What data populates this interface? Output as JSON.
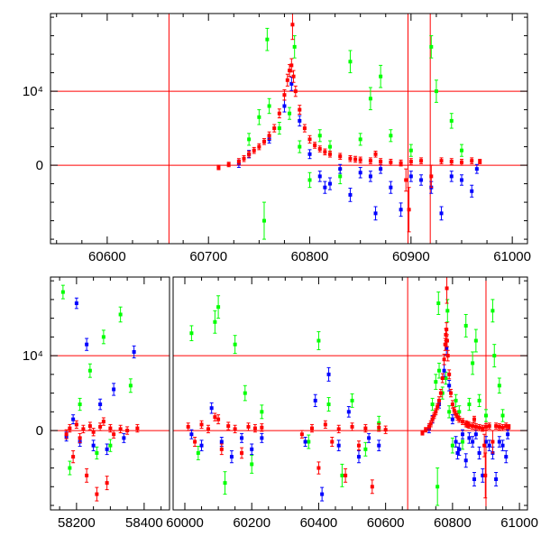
{
  "chart_data": {
    "type": "scatter",
    "title": "",
    "xlabel": "",
    "ylabel": "",
    "colors": {
      "red": "#ff0000",
      "blue": "#0000ff",
      "green": "#00ff00",
      "ref": "#ff0000"
    },
    "panels": [
      {
        "name": "top-panel",
        "segments": [
          {
            "xlim": [
              60544,
              61015
            ],
            "xticks": [
              60600,
              60700,
              60800,
              60900,
              61000
            ],
            "xtick_labels": [
              "60600",
              "60700",
              "60800",
              "60900",
              "61000"
            ]
          }
        ],
        "ylim": [
          -10600,
          20500
        ],
        "yticks": [
          0,
          10000
        ],
        "ytick_labels": [
          "0",
          "10⁴"
        ],
        "hlines": [
          0,
          10000
        ],
        "vlines": [
          60661,
          60897,
          60919
        ],
        "series_sets": [
          "event"
        ]
      },
      {
        "name": "bottom-panel",
        "segments": [
          {
            "xlim": [
              58123,
              58475
            ],
            "xticks": [
              58200,
              58400
            ],
            "xtick_labels": [
              "58200",
              "58400"
            ]
          },
          {
            "xlim": [
              59965,
              61024
            ],
            "xticks": [
              60000,
              60200,
              60400,
              60600,
              60800,
              61000
            ],
            "xtick_labels": [
              "60000",
              "60200",
              "60400",
              "60600",
              "60800",
              "61000"
            ]
          }
        ],
        "ylim": [
          -10600,
          20500
        ],
        "yticks": [
          0,
          10000
        ],
        "ytick_labels": [
          "0",
          "10⁴"
        ],
        "hlines": [
          0,
          10000
        ],
        "vlines": [
          60666,
          60900
        ],
        "series_sets": [
          "event",
          "baseline"
        ]
      }
    ],
    "series": {
      "event": [
        {
          "name": "red",
          "points": [
            [
              60710,
              -300,
              300
            ],
            [
              60720,
              100,
              300
            ],
            [
              60730,
              500,
              400
            ],
            [
              60735,
              900,
              400
            ],
            [
              60740,
              1500,
              400
            ],
            [
              60745,
              2000,
              400
            ],
            [
              60750,
              2500,
              400
            ],
            [
              60755,
              3200,
              400
            ],
            [
              60760,
              4000,
              500
            ],
            [
              60765,
              5000,
              500
            ],
            [
              60770,
              7000,
              600
            ],
            [
              60775,
              9500,
              700
            ],
            [
              60778,
              11500,
              800
            ],
            [
              60780,
              12800,
              800
            ],
            [
              60782,
              13500,
              900
            ],
            [
              60783,
              19000,
              2000
            ],
            [
              60784,
              12000,
              800
            ],
            [
              60786,
              10000,
              700
            ],
            [
              60790,
              7500,
              600
            ],
            [
              60795,
              5000,
              500
            ],
            [
              60800,
              3500,
              500
            ],
            [
              60805,
              2700,
              400
            ],
            [
              60810,
              2200,
              400
            ],
            [
              60815,
              1800,
              400
            ],
            [
              60820,
              1500,
              400
            ],
            [
              60830,
              1200,
              400
            ],
            [
              60840,
              900,
              400
            ],
            [
              60845,
              800,
              400
            ],
            [
              60850,
              700,
              400
            ],
            [
              60860,
              600,
              400
            ],
            [
              60865,
              1500,
              400
            ],
            [
              60870,
              500,
              400
            ],
            [
              60880,
              400,
              400
            ],
            [
              60890,
              300,
              400
            ],
            [
              60895,
              -2000,
              1500
            ],
            [
              60898,
              -6000,
              3000
            ],
            [
              60900,
              500,
              400
            ],
            [
              60910,
              600,
              400
            ],
            [
              60920,
              -1500,
              1500
            ],
            [
              60930,
              600,
              400
            ],
            [
              60940,
              500,
              400
            ],
            [
              60950,
              400,
              400
            ],
            [
              60960,
              600,
              400
            ],
            [
              60968,
              500,
              300
            ]
          ]
        },
        {
          "name": "blue",
          "points": [
            [
              60730,
              200,
              500
            ],
            [
              60740,
              1500,
              500
            ],
            [
              60760,
              3500,
              500
            ],
            [
              60775,
              8000,
              800
            ],
            [
              60782,
              11000,
              900
            ],
            [
              60790,
              6000,
              700
            ],
            [
              60800,
              1500,
              600
            ],
            [
              60810,
              -1500,
              700
            ],
            [
              60815,
              -3000,
              800
            ],
            [
              60820,
              -2500,
              800
            ],
            [
              60830,
              -500,
              600
            ],
            [
              60840,
              -4000,
              900
            ],
            [
              60850,
              -1000,
              700
            ],
            [
              60860,
              -1500,
              700
            ],
            [
              60865,
              -6500,
              900
            ],
            [
              60870,
              -500,
              600
            ],
            [
              60880,
              -3000,
              800
            ],
            [
              60890,
              -6000,
              900
            ],
            [
              60900,
              -1500,
              700
            ],
            [
              60910,
              -2000,
              700
            ],
            [
              60920,
              -3000,
              800
            ],
            [
              60930,
              -6500,
              900
            ],
            [
              60940,
              -1500,
              700
            ],
            [
              60950,
              -2000,
              700
            ],
            [
              60960,
              -3500,
              800
            ],
            [
              60965,
              -500,
              600
            ]
          ]
        },
        {
          "name": "green",
          "points": [
            [
              60740,
              3500,
              800
            ],
            [
              60750,
              6500,
              1000
            ],
            [
              60755,
              -7500,
              2500
            ],
            [
              60758,
              17000,
              1500
            ],
            [
              60760,
              8000,
              1000
            ],
            [
              60770,
              5000,
              800
            ],
            [
              60780,
              7000,
              800
            ],
            [
              60785,
              16000,
              1500
            ],
            [
              60790,
              2500,
              800
            ],
            [
              60800,
              -2000,
              1000
            ],
            [
              60810,
              4000,
              800
            ],
            [
              60820,
              2500,
              800
            ],
            [
              60830,
              -1500,
              1000
            ],
            [
              60840,
              14000,
              1500
            ],
            [
              60850,
              3500,
              800
            ],
            [
              60860,
              9000,
              1500
            ],
            [
              60870,
              12000,
              1500
            ],
            [
              60880,
              4000,
              800
            ],
            [
              60900,
              2000,
              800
            ],
            [
              60920,
              16000,
              1500
            ],
            [
              60925,
              10000,
              1500
            ],
            [
              60940,
              6000,
              1000
            ],
            [
              60950,
              2000,
              800
            ]
          ]
        }
      ],
      "baseline": [
        {
          "name": "red",
          "points": [
            [
              58170,
              -500,
              600
            ],
            [
              58180,
              300,
              500
            ],
            [
              58190,
              -3500,
              800
            ],
            [
              58200,
              800,
              500
            ],
            [
              58210,
              -1000,
              600
            ],
            [
              58220,
              200,
              500
            ],
            [
              58230,
              -6000,
              900
            ],
            [
              58240,
              600,
              500
            ],
            [
              58250,
              -200,
              500
            ],
            [
              58260,
              -8500,
              900
            ],
            [
              58270,
              500,
              500
            ],
            [
              58280,
              1200,
              500
            ],
            [
              58290,
              -7000,
              900
            ],
            [
              58300,
              300,
              500
            ],
            [
              58310,
              -500,
              500
            ],
            [
              58330,
              200,
              500
            ],
            [
              58350,
              0,
              500
            ],
            [
              58380,
              300,
              500
            ],
            [
              60010,
              500,
              500
            ],
            [
              60030,
              -1500,
              600
            ],
            [
              60050,
              800,
              500
            ],
            [
              60070,
              200,
              500
            ],
            [
              60090,
              1800,
              500
            ],
            [
              60100,
              1500,
              600
            ],
            [
              60110,
              -2500,
              700
            ],
            [
              60130,
              600,
              500
            ],
            [
              60150,
              200,
              500
            ],
            [
              60170,
              -3000,
              700
            ],
            [
              60190,
              500,
              500
            ],
            [
              60210,
              300,
              500
            ],
            [
              60230,
              400,
              500
            ],
            [
              60350,
              -500,
              500
            ],
            [
              60380,
              300,
              500
            ],
            [
              60400,
              -5000,
              800
            ],
            [
              60420,
              800,
              500
            ],
            [
              60440,
              -1500,
              600
            ],
            [
              60460,
              200,
              500
            ],
            [
              60480,
              -6000,
              900
            ],
            [
              60500,
              500,
              500
            ],
            [
              60520,
              -2000,
              600
            ],
            [
              60540,
              300,
              500
            ],
            [
              60560,
              -7500,
              900
            ],
            [
              60580,
              400,
              500
            ],
            [
              60600,
              100,
              500
            ]
          ]
        },
        {
          "name": "blue",
          "points": [
            [
              58170,
              -800,
              600
            ],
            [
              58190,
              1500,
              600
            ],
            [
              58200,
              17000,
              700
            ],
            [
              58210,
              -1500,
              600
            ],
            [
              58230,
              11500,
              800
            ],
            [
              58250,
              -2000,
              700
            ],
            [
              58270,
              3500,
              700
            ],
            [
              58290,
              -2500,
              700
            ],
            [
              58310,
              5500,
              800
            ],
            [
              58340,
              -1000,
              600
            ],
            [
              58370,
              10500,
              800
            ],
            [
              60020,
              -500,
              600
            ],
            [
              60050,
              -2000,
              700
            ],
            [
              60080,
              3000,
              700
            ],
            [
              60110,
              -1500,
              600
            ],
            [
              60140,
              -3500,
              800
            ],
            [
              60170,
              -1000,
              600
            ],
            [
              60200,
              -2500,
              700
            ],
            [
              60230,
              -1000,
              600
            ],
            [
              60360,
              -1500,
              600
            ],
            [
              60390,
              4000,
              800
            ],
            [
              60410,
              -8500,
              900
            ],
            [
              60430,
              7500,
              900
            ],
            [
              60460,
              -2000,
              700
            ],
            [
              60490,
              2500,
              700
            ],
            [
              60520,
              -3500,
              800
            ],
            [
              60550,
              -1000,
              600
            ],
            [
              60580,
              -2000,
              700
            ]
          ]
        },
        {
          "name": "green",
          "points": [
            [
              58160,
              18500,
              900
            ],
            [
              58180,
              -5000,
              900
            ],
            [
              58210,
              3500,
              800
            ],
            [
              58240,
              8000,
              900
            ],
            [
              58260,
              -3000,
              800
            ],
            [
              58280,
              12500,
              900
            ],
            [
              58300,
              -2000,
              800
            ],
            [
              58330,
              15500,
              1000
            ],
            [
              58360,
              6000,
              900
            ],
            [
              60020,
              13000,
              1000
            ],
            [
              60040,
              -3000,
              900
            ],
            [
              60090,
              14500,
              1500
            ],
            [
              60100,
              16500,
              1500
            ],
            [
              60120,
              -7000,
              1500
            ],
            [
              60150,
              11500,
              1200
            ],
            [
              60180,
              5000,
              1000
            ],
            [
              60200,
              -4500,
              1200
            ],
            [
              60230,
              2500,
              900
            ],
            [
              60370,
              -1500,
              900
            ],
            [
              60400,
              12000,
              1200
            ],
            [
              60430,
              3500,
              900
            ],
            [
              60470,
              -6000,
              1500
            ],
            [
              60500,
              4000,
              900
            ],
            [
              60540,
              -2500,
              900
            ],
            [
              60580,
              1000,
              900
            ]
          ]
        }
      ]
    }
  }
}
